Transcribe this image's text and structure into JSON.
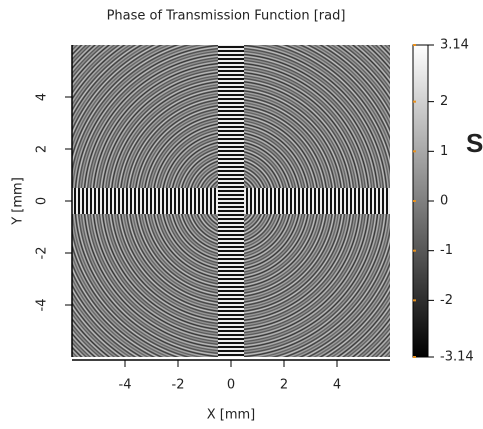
{
  "chart_data": {
    "type": "heatmap",
    "title": "Phase of Transmission Function  [rad]",
    "x_label": "X [mm]",
    "y_label": "Y [mm]",
    "xlim": [
      -6,
      6
    ],
    "ylim": [
      -6,
      6
    ],
    "xticks": [
      -4,
      -2,
      0,
      2,
      4
    ],
    "yticks": [
      -4,
      -2,
      0,
      2,
      4
    ],
    "zlim": [
      -3.14,
      3.14
    ],
    "zticks": [
      -3.14,
      -2,
      -1,
      0,
      1,
      2,
      3.14
    ],
    "colormap": [
      "#000000",
      "#ffffff"
    ],
    "annotation": "S"
  }
}
